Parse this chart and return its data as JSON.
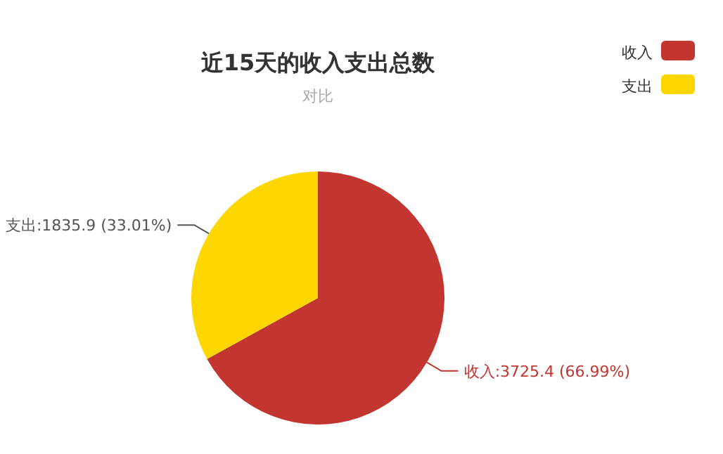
{
  "chart_data": {
    "type": "pie",
    "title": "近15天的收入支出总数",
    "subtitle": "对比",
    "categories": [
      "收入",
      "支出"
    ],
    "values": [
      3725.4,
      1835.9
    ],
    "colors": [
      "#c23531",
      "#ffd700"
    ],
    "value_labels": [
      "收入:3725.4 (66.99%)",
      "支出:1835.9 (33.01%)"
    ],
    "legend": "top right"
  }
}
